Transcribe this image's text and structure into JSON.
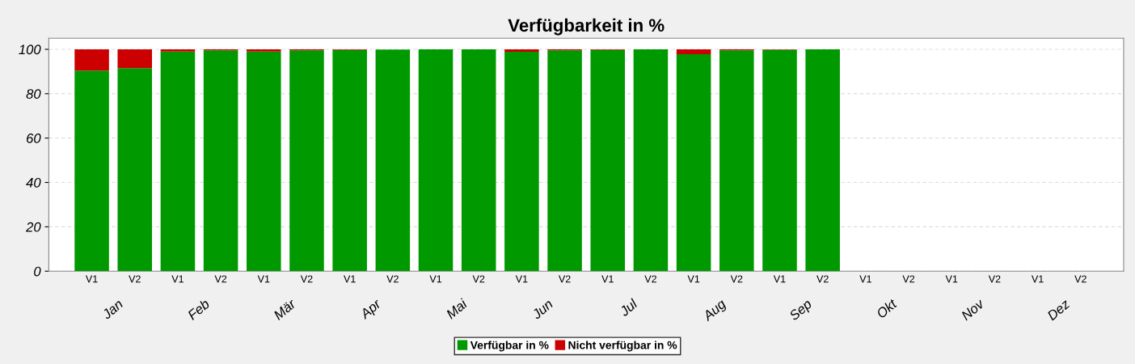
{
  "chart_data": {
    "type": "bar",
    "title": "Verfügbarkeit in %",
    "stacked": true,
    "categories": [
      "V1",
      "V2",
      "V1",
      "V2",
      "V1",
      "V2",
      "V1",
      "V2",
      "V1",
      "V2",
      "V1",
      "V2",
      "V1",
      "V2",
      "V1",
      "V2",
      "V1",
      "V2",
      "V1",
      "V2",
      "V1",
      "V2",
      "V1",
      "V2"
    ],
    "series": [
      {
        "name": "Verfügbar in %",
        "color": "#009900",
        "values": [
          90.4,
          91.5,
          99,
          99.5,
          99,
          99.5,
          99.7,
          99.9,
          100,
          100,
          98.9,
          99.5,
          99.7,
          100,
          97.8,
          99.5,
          99.8,
          100,
          null,
          null,
          null,
          null,
          null,
          null
        ]
      },
      {
        "name": "Nicht verfügbar in %",
        "color": "#cc0000",
        "values": [
          9.6,
          8.5,
          1,
          0.5,
          1,
          0.5,
          0.3,
          null,
          0,
          0,
          1.1,
          0.5,
          0.3,
          0,
          2.2,
          0.5,
          0.2,
          0,
          null,
          null,
          null,
          null,
          null,
          null
        ]
      }
    ],
    "annotations": [
      "Jan",
      "Feb",
      "Mär",
      "Apr",
      "Mai",
      "Jun",
      "Jul",
      "Aug",
      "Sep",
      "Okt",
      "Nov",
      "Dez"
    ],
    "ylim": [
      0,
      105
    ],
    "yticks": [
      0,
      20,
      40,
      60,
      80,
      100
    ],
    "grid": "y",
    "legend": "bottom"
  }
}
